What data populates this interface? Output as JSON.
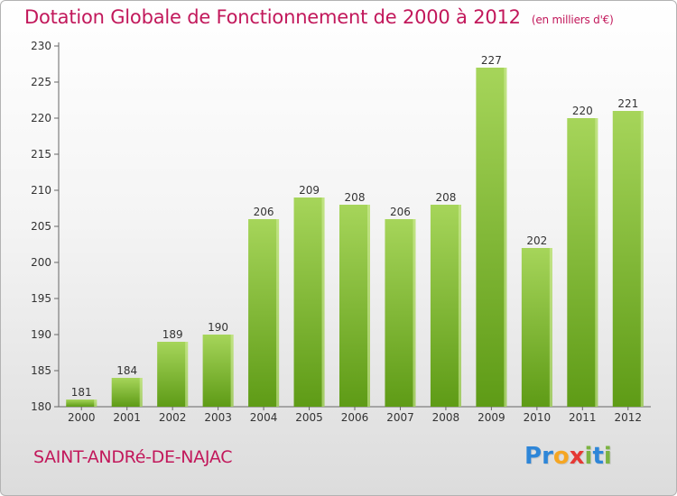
{
  "header": {
    "title": "Dotation Globale de Fonctionnement de 2000 à 2012",
    "unit": "(en milliers d'€)"
  },
  "footer": {
    "commune": "SAINT-ANDRé-DE-NAJAC",
    "logo": {
      "letters": [
        "P",
        "r",
        "o",
        "x",
        "i",
        "t",
        "i"
      ],
      "colors": [
        "#2e86d8",
        "#2e86d8",
        "#f5a623",
        "#e53935",
        "#7cb342",
        "#2e86d8",
        "#7cb342"
      ]
    }
  },
  "colors": {
    "bar_light": "#a6d55a",
    "bar_dark": "#5e9b16",
    "bar_side": "#d2ec9c",
    "text_accent": "#c2185b"
  },
  "chart_data": {
    "type": "bar",
    "title": "Dotation Globale de Fonctionnement de 2000 à 2012",
    "subtitle": "(en milliers d'€)",
    "categories": [
      "2000",
      "2001",
      "2002",
      "2003",
      "2004",
      "2005",
      "2006",
      "2007",
      "2008",
      "2009",
      "2010",
      "2011",
      "2012"
    ],
    "values": [
      181,
      184,
      189,
      190,
      206,
      209,
      208,
      206,
      208,
      227,
      202,
      220,
      221
    ],
    "ylim": [
      180,
      230
    ],
    "yticks": [
      180,
      185,
      190,
      195,
      200,
      205,
      210,
      215,
      220,
      225,
      230
    ],
    "grid": false,
    "xlabel": "",
    "ylabel": ""
  }
}
